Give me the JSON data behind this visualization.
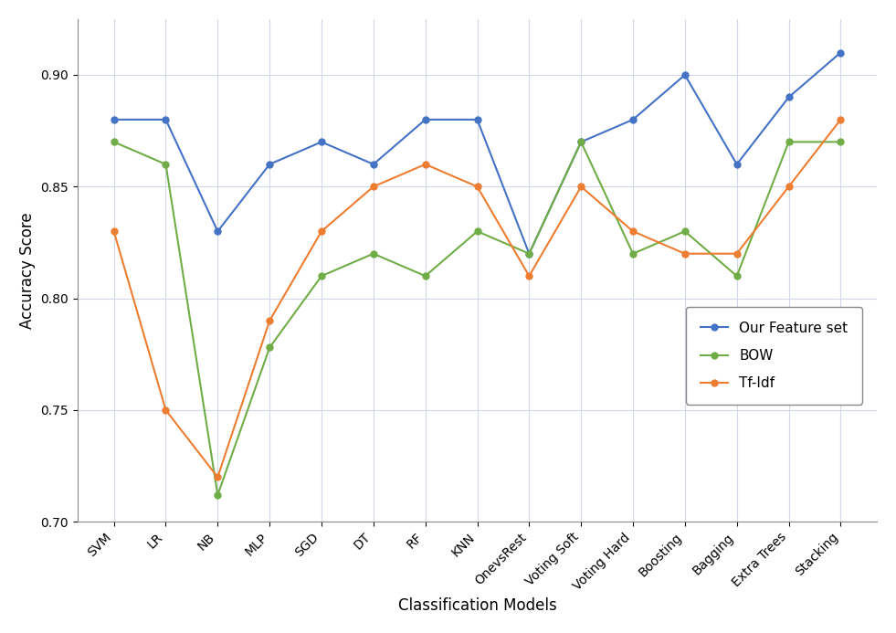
{
  "categories": [
    "SVM",
    "LR",
    "NB",
    "MLP",
    "SGD",
    "DT",
    "RF",
    "KNN",
    "OnevsRest",
    "Voting Soft",
    "Voting Hard",
    "Boosting",
    "Bagging",
    "Extra Trees",
    "Stacking"
  ],
  "our_feature_set": [
    0.88,
    0.88,
    0.83,
    0.86,
    0.87,
    0.86,
    0.88,
    0.88,
    0.82,
    0.87,
    0.88,
    0.9,
    0.86,
    0.89,
    0.91
  ],
  "bow": [
    0.87,
    0.86,
    0.712,
    0.778,
    0.81,
    0.82,
    0.81,
    0.83,
    0.82,
    0.87,
    0.82,
    0.83,
    0.81,
    0.87,
    0.87
  ],
  "tf_idf": [
    0.83,
    0.75,
    0.72,
    0.79,
    0.83,
    0.85,
    0.86,
    0.85,
    0.81,
    0.85,
    0.83,
    0.82,
    0.82,
    0.85,
    0.88
  ],
  "our_color": "#4472C4",
  "bow_color": "#70AD47",
  "tfidf_color": "#ED7D31",
  "xlabel": "Classification Models",
  "ylabel": "Accuracy Score",
  "ylim": [
    0.7,
    0.925
  ],
  "yticks": [
    0.7,
    0.75,
    0.8,
    0.85,
    0.9
  ],
  "legend_labels": [
    "Our Feature set",
    "BOW",
    "Tf-Idf"
  ],
  "background_color": "#ffffff",
  "plot_bg_color": "#ffffff",
  "grid_color": "#d0d8e8",
  "marker": "o",
  "markersize": 5,
  "linewidth": 1.5,
  "xlabel_fontsize": 12,
  "ylabel_fontsize": 12,
  "tick_fontsize": 10,
  "legend_fontsize": 11
}
